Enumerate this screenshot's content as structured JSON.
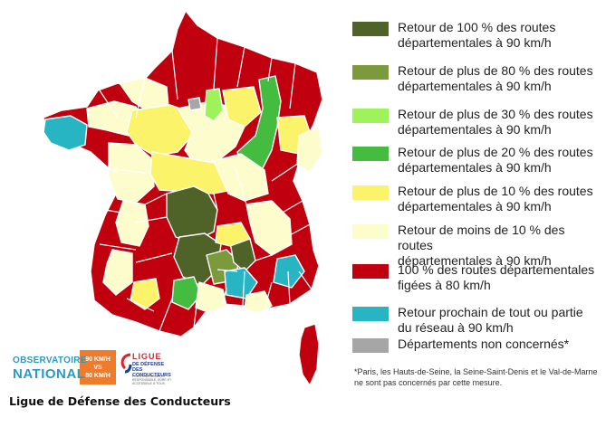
{
  "legend": [
    {
      "label": "Retour de 100 % des routes\ndépartementales à 90 km/h",
      "color": "#4f6228"
    },
    {
      "label": "Retour de plus de 80 % des routes\ndépartementales à 90 km/h",
      "color": "#7a9a3c"
    },
    {
      "label": "Retour de plus de 30 % des routes\ndépartementales à 90 km/h",
      "color": "#9ef25a"
    },
    {
      "label": "Retour de plus de 20 % des routes\ndépartementales à 90 km/h",
      "color": "#44bc40"
    },
    {
      "label": "Retour de plus de 10 % des routes\ndépartementales à 90 km/h",
      "color": "#fbf36a"
    },
    {
      "label": "Retour de moins de 10 % des routes\ndépartementales à 90 km/h",
      "color": "#fdfccc"
    },
    {
      "label": "100 % des routes départementales\nfigées à 80 km/h",
      "color": "#c0000f"
    },
    {
      "label": "Retour prochain de tout ou partie\ndu réseau à 90 km/h",
      "color": "#27b5c4"
    },
    {
      "label": "Départements non concernés*",
      "color": "#a6a6a6"
    }
  ],
  "footnote": "*Paris, les Hauts-de-Seine, la Seine-Saint-Denis et le Val-de-Marne ne sont pas concernés par cette mesure.",
  "logos": {
    "observatoire_line1": "OBSERVATOIRE",
    "observatoire_line2": "NATIONAL",
    "speed_line1": "90 KM/H",
    "speed_line2": "VS",
    "speed_line3": "80 KM/H",
    "ligue_line1": "LIGUE",
    "ligue_line2": "DE DÉFENSE DES CONDUCTEURS",
    "ligue_line3": "POUR UNE MOBILITÉ RESPONSABLE, SÛRE ET ACCESSIBLE À TOUS"
  },
  "caption": "Ligue de Défense des Conducteurs",
  "colors": {
    "red": "#c0000f",
    "pale": "#fdfccc",
    "yellow": "#fbf36a",
    "green": "#44bc40",
    "lime": "#9ef25a",
    "olive": "#7a9a3c",
    "dark": "#4f6228",
    "cyan": "#27b5c4",
    "gray": "#a6a6a6",
    "border": "#ffffff"
  }
}
